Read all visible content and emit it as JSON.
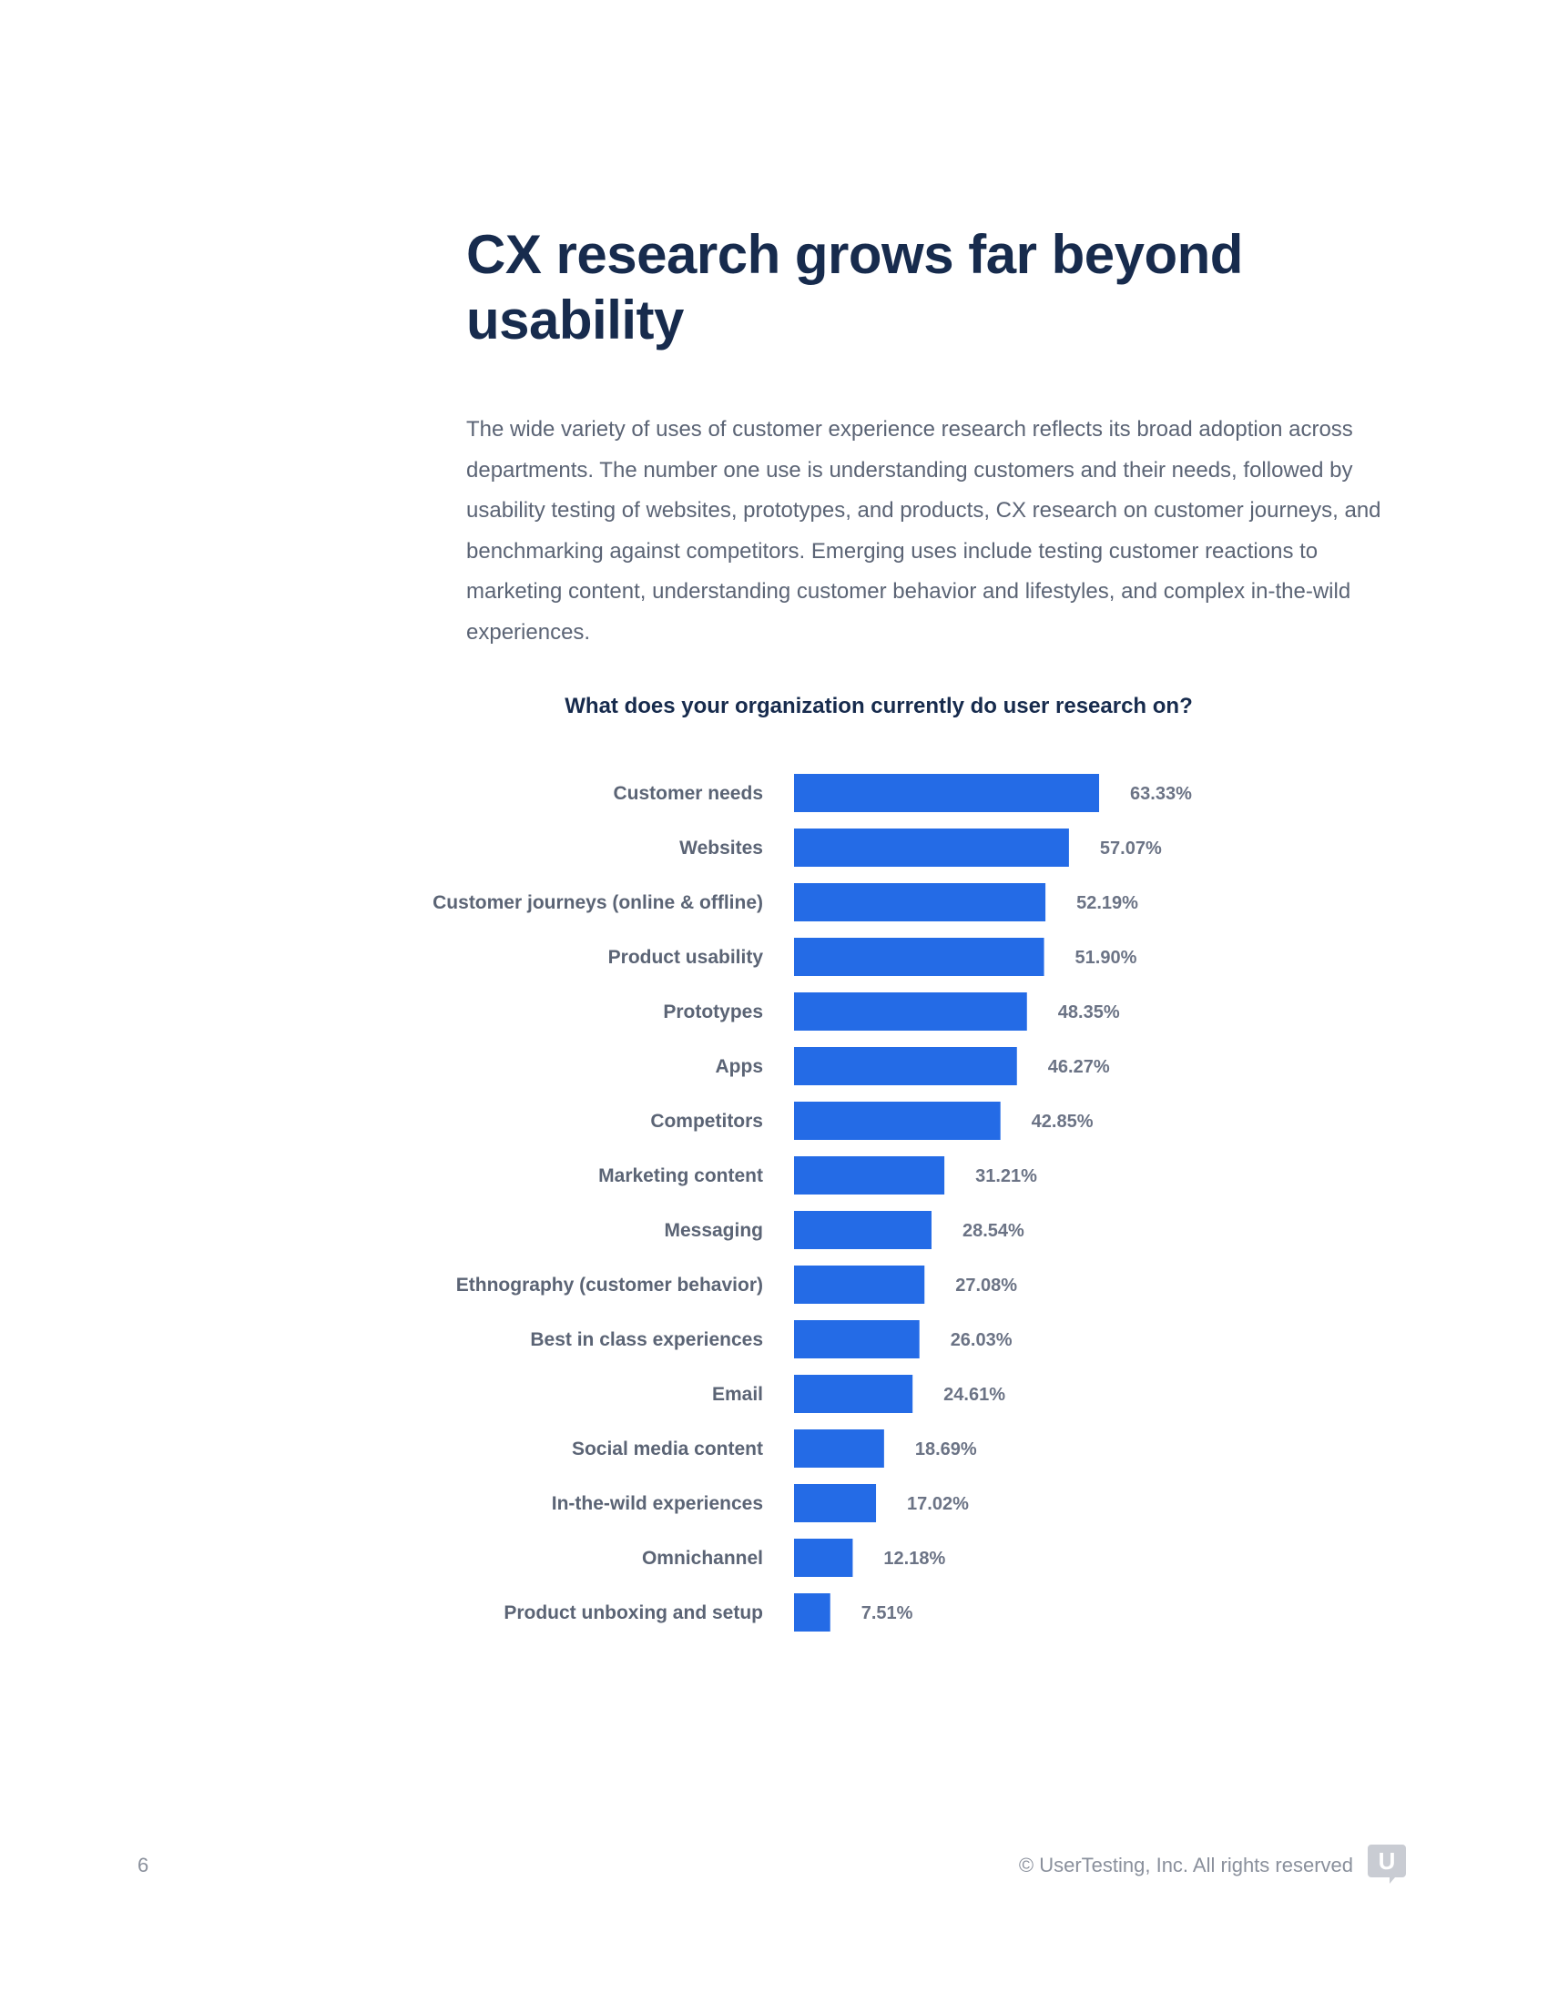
{
  "page": {
    "title": "CX research grows far beyond usability",
    "intro": "The wide variety of uses of customer experience research reflects its broad adoption across departments. The number one use is understanding customers and their needs, followed by usability testing of websites, prototypes, and products, CX research on customer journeys, and benchmarking against competitors. Emerging uses include testing customer reactions to marketing content, understanding customer behavior and lifestyles, and complex in-the-wild experiences."
  },
  "chart_data": {
    "type": "bar",
    "orientation": "horizontal",
    "title": "What does your organization currently do user research on?",
    "categories": [
      "Customer needs",
      "Websites",
      "Customer journeys (online & offline)",
      "Product usability",
      "Prototypes",
      "Apps",
      "Competitors",
      "Marketing content",
      "Messaging",
      "Ethnography (customer behavior)",
      "Best in class experiences",
      "Email",
      "Social media content",
      "In-the-wild experiences",
      "Omnichannel",
      "Product unboxing and setup"
    ],
    "values": [
      63.33,
      57.07,
      52.19,
      51.9,
      48.35,
      46.27,
      42.85,
      31.21,
      28.54,
      27.08,
      26.03,
      24.61,
      18.69,
      17.02,
      12.18,
      7.51
    ],
    "value_labels": [
      "63.33%",
      "57.07%",
      "52.19%",
      "51.90%",
      "48.35%",
      "46.27%",
      "42.85%",
      "31.21%",
      "28.54%",
      "27.08%",
      "26.03%",
      "24.61%",
      "18.69%",
      "17.02%",
      "12.18%",
      "7.51%"
    ],
    "unit": "%",
    "xlim": [
      0,
      100
    ],
    "grid": false,
    "legend": "none",
    "bar_color": "#246be6"
  },
  "footer": {
    "page_number": "6",
    "copyright": "© UserTesting, Inc. All rights reserved",
    "logo_letter": "U"
  }
}
